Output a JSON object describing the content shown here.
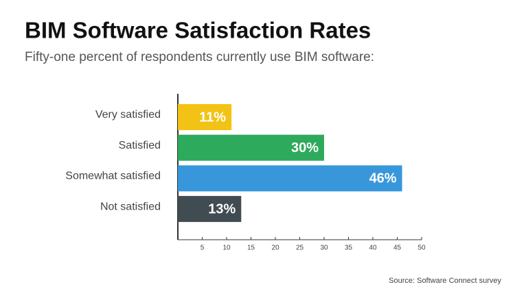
{
  "chart_data": {
    "type": "barh",
    "title": "BIM Software Satisfaction Rates",
    "subtitle": "Fifty-one percent of respondents currently use BIM software:",
    "categories": [
      "Very satisfied",
      "Satisfied",
      "Somewhat satisfied",
      "Not satisfied"
    ],
    "values": [
      11,
      30,
      46,
      13
    ],
    "value_labels": [
      "11%",
      "30%",
      "46%",
      "13%"
    ],
    "colors": [
      "#f2c314",
      "#2eaa5c",
      "#3897db",
      "#414b52"
    ],
    "xlim": [
      0,
      50
    ],
    "xticks": [
      5,
      10,
      15,
      20,
      25,
      30,
      35,
      40,
      45,
      50
    ],
    "source": "Source: Software Connect survey"
  }
}
